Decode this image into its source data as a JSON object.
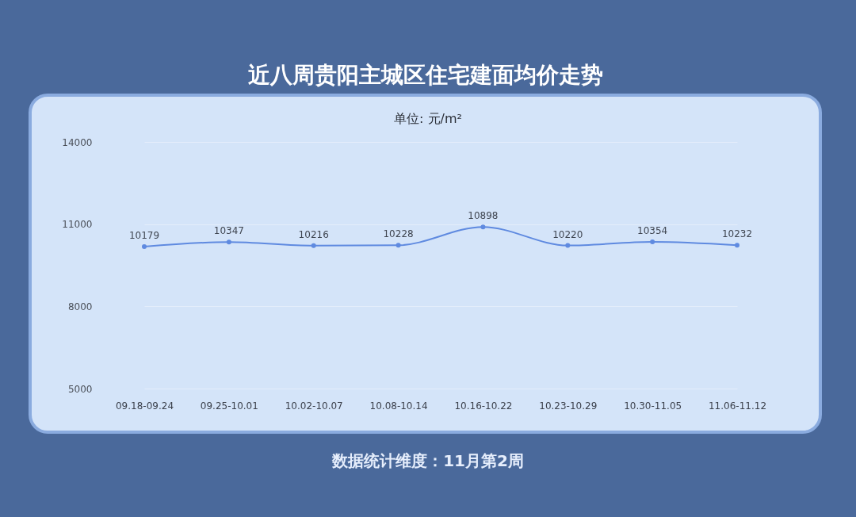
{
  "chart_data": {
    "type": "line",
    "title": "近八周贵阳主城区住宅建面均价走势",
    "subtitle": "单位: 元/m²",
    "annotations": [
      "数据统计维度：11月第2周"
    ],
    "categories": [
      "09.18-09.24",
      "09.25-10.01",
      "10.02-10.07",
      "10.08-10.14",
      "10.16-10.22",
      "10.23-10.29",
      "10.30-11.05",
      "11.06-11.12"
    ],
    "series": [
      {
        "color": "#5f8ae0",
        "values": [
          10179,
          10347,
          10216,
          10228,
          10898,
          10220,
          10354,
          10232
        ]
      }
    ],
    "ylim": [
      5000,
      14000
    ],
    "yticks": [
      5000,
      8000,
      11000,
      14000
    ],
    "grid": "y",
    "data_labels": true,
    "marker": "circle",
    "line_style": "solid"
  }
}
